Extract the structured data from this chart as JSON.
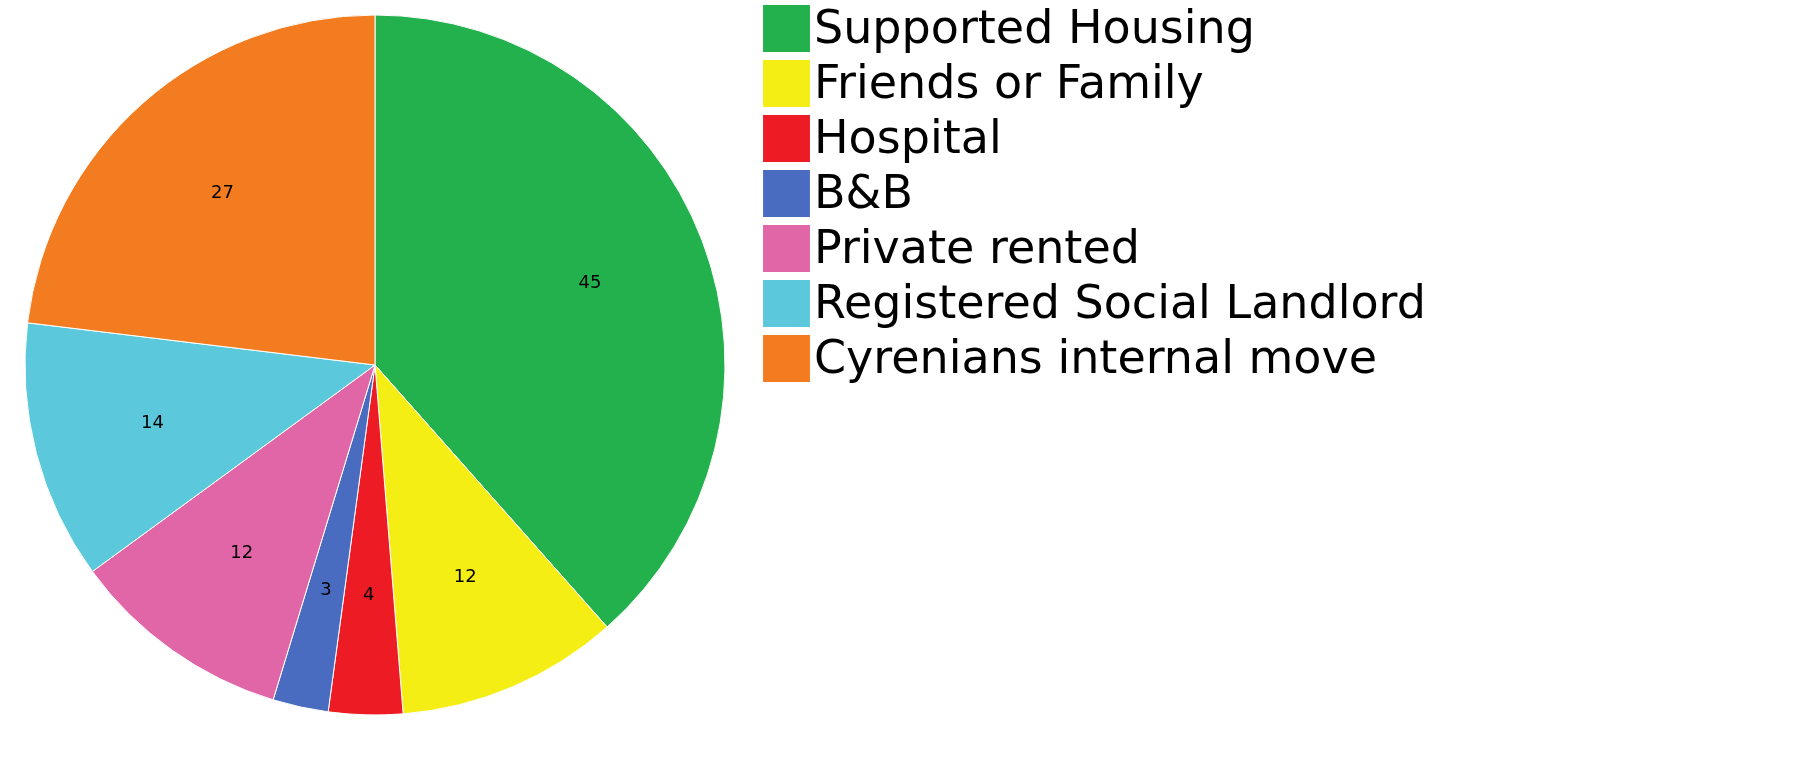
{
  "chart_data": {
    "type": "pie",
    "categories": [
      "Supported Housing",
      "Friends or Family",
      "Hospital",
      "B&B",
      "Private rented",
      "Registered Social Landlord",
      "Cyrenians internal move"
    ],
    "values": [
      45,
      12,
      4,
      3,
      12,
      14,
      27
    ],
    "colors": [
      "#22b14c",
      "#f4ee14",
      "#ed1c24",
      "#4a6cc0",
      "#e066a8",
      "#5bc8dc",
      "#f47c20"
    ],
    "data_labels": true,
    "legend": "right"
  }
}
